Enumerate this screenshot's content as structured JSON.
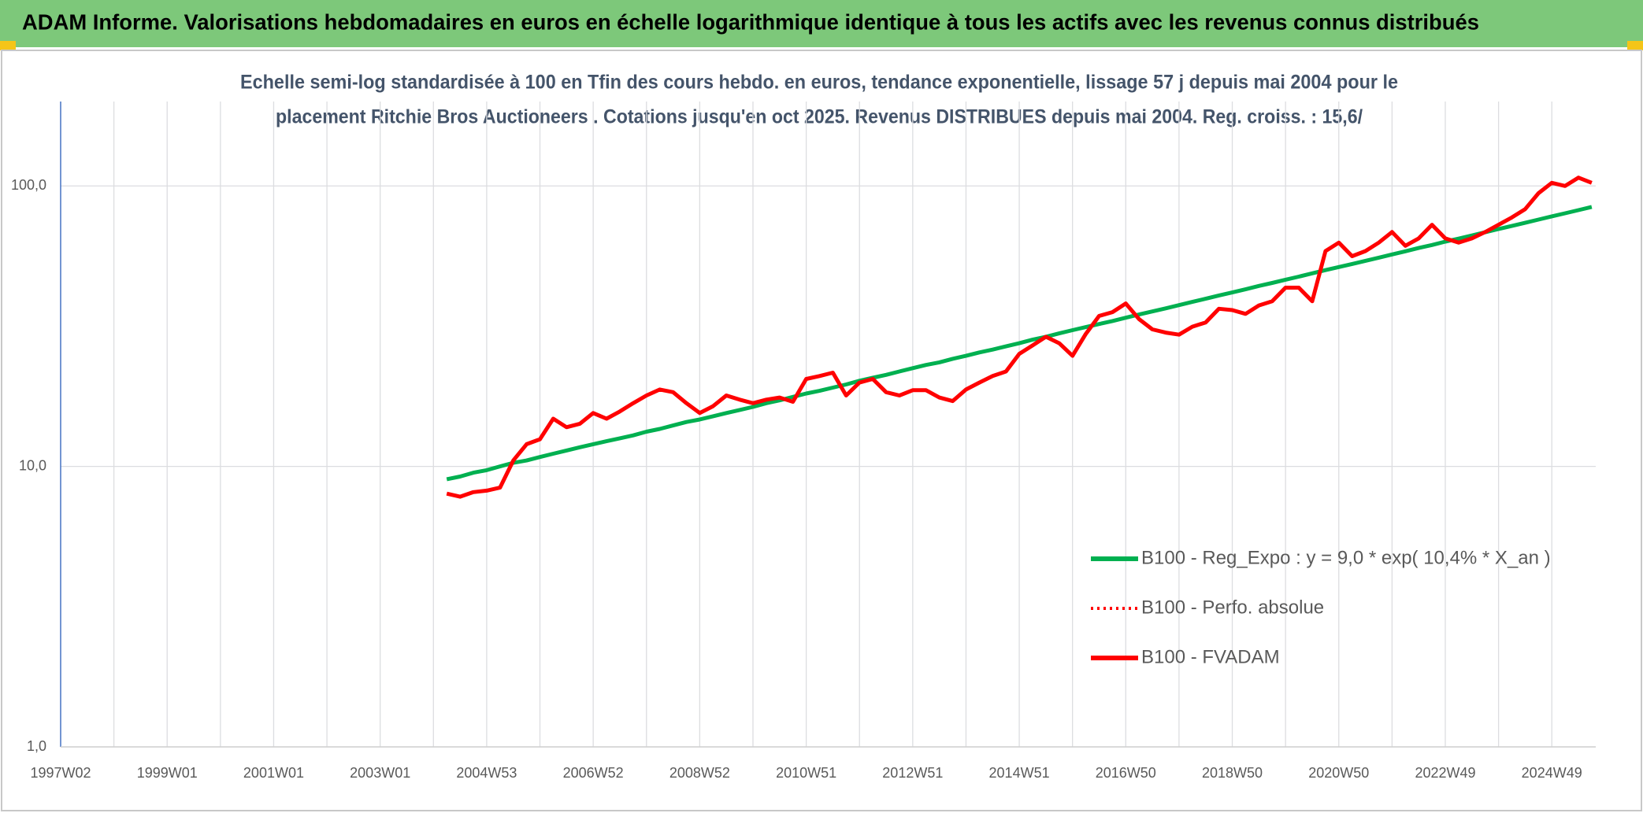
{
  "chart_data": {
    "type": "line",
    "title": "ADAM Informe. Valorisations hebdomadaires en euros en échelle logarithmique identique à tous les actifs avec les revenus connus distribués",
    "subtitle": [
      "Echelle semi-log standardisée à 100 en Tfin des cours hebdo. en euros, tendance exponentielle, lissage 57 j depuis mai 2004 pour le",
      "placement Ritchie Bros Auctioneers . Cotations jusqu'en oct 2025. Revenus DISTRIBUES depuis mai 2004. Reg. croiss. : 15,6/"
    ],
    "categories": [
      "1997W02",
      null,
      null,
      null,
      null,
      null,
      null,
      null,
      "1999W01",
      null,
      null,
      null,
      null,
      null,
      null,
      null,
      "2001W01",
      null,
      null,
      null,
      null,
      null,
      null,
      null,
      "2003W01",
      null,
      null,
      null,
      null,
      null,
      null,
      null,
      "2004W53",
      null,
      null,
      null,
      null,
      null,
      null,
      null,
      "2006W52",
      null,
      null,
      null,
      null,
      null,
      null,
      null,
      "2008W52",
      null,
      null,
      null,
      null,
      null,
      null,
      null,
      "2010W51",
      null,
      null,
      null,
      null,
      null,
      null,
      null,
      "2012W51",
      null,
      null,
      null,
      null,
      null,
      null,
      null,
      "2014W51",
      null,
      null,
      null,
      null,
      null,
      null,
      null,
      "2016W50",
      null,
      null,
      null,
      null,
      null,
      null,
      null,
      "2018W50",
      null,
      null,
      null,
      null,
      null,
      null,
      null,
      "2020W50",
      null,
      null,
      null,
      null,
      null,
      null,
      null,
      "2022W49",
      null,
      null,
      null,
      null,
      null,
      null,
      null,
      "2024W49",
      null,
      null,
      null
    ],
    "log_scale": true,
    "ylim": [
      1,
      200
    ],
    "yticks": [
      {
        "value": 1,
        "label": "1,0"
      },
      {
        "value": 10,
        "label": "10,0"
      },
      {
        "value": 100,
        "label": "100,0"
      }
    ],
    "grid": true,
    "series": [
      {
        "name": "B100 - Reg_Expo : y = 9,0 * exp( 10,4% *  X_an )",
        "color": "#00b050",
        "values": [
          null,
          null,
          null,
          null,
          null,
          null,
          null,
          null,
          null,
          null,
          null,
          null,
          null,
          null,
          null,
          null,
          null,
          null,
          null,
          null,
          null,
          null,
          null,
          null,
          null,
          null,
          null,
          null,
          null,
          9.0,
          9.2,
          9.5,
          9.7,
          10.0,
          10.3,
          10.5,
          10.8,
          11.1,
          11.4,
          11.7,
          12.0,
          12.3,
          12.6,
          12.9,
          13.3,
          13.6,
          14.0,
          14.4,
          14.7,
          15.1,
          15.5,
          15.9,
          16.3,
          16.8,
          17.2,
          17.7,
          18.2,
          18.6,
          19.1,
          19.6,
          20.2,
          20.7,
          21.2,
          21.8,
          22.4,
          23.0,
          23.5,
          24.2,
          24.8,
          25.5,
          26.1,
          26.8,
          27.5,
          28.3,
          29.0,
          29.8,
          30.6,
          31.4,
          32.2,
          33.0,
          33.9,
          34.8,
          35.7,
          36.6,
          37.6,
          38.6,
          39.6,
          40.7,
          41.7,
          42.8,
          44.0,
          45.1,
          46.3,
          47.5,
          48.8,
          50.1,
          51.4,
          52.7,
          54.1,
          55.5,
          57.0,
          58.5,
          60.1,
          61.6,
          63.3,
          64.9,
          66.6,
          68.4,
          70.2,
          72.0,
          73.9,
          75.9,
          77.9,
          79.9,
          82.0,
          84.2
        ]
      },
      {
        "name": "B100 - Perfo. absolue",
        "color": "#ff0000",
        "dash": "dotted"
      },
      {
        "name": "B100 - FVADAM",
        "color": "#ff0000",
        "values": [
          null,
          null,
          null,
          null,
          null,
          null,
          null,
          null,
          null,
          null,
          null,
          null,
          null,
          null,
          null,
          null,
          null,
          null,
          null,
          null,
          null,
          null,
          null,
          null,
          null,
          null,
          null,
          null,
          null,
          8.0,
          7.8,
          8.1,
          8.2,
          8.4,
          10.5,
          12.0,
          12.5,
          14.8,
          13.8,
          14.2,
          15.5,
          14.8,
          15.7,
          16.8,
          17.9,
          18.8,
          18.4,
          16.8,
          15.5,
          16.4,
          17.9,
          17.3,
          16.8,
          17.3,
          17.6,
          17.0,
          20.5,
          21.0,
          21.6,
          17.9,
          19.9,
          20.5,
          18.4,
          17.9,
          18.7,
          18.7,
          17.6,
          17.1,
          18.8,
          19.9,
          21.0,
          21.8,
          25.2,
          27.0,
          29.0,
          27.5,
          24.8,
          29.7,
          34.4,
          35.5,
          38.1,
          33.5,
          30.8,
          30.0,
          29.5,
          31.5,
          32.6,
          36.5,
          36.1,
          35.0,
          37.5,
          38.8,
          43.4,
          43.4,
          38.8,
          58.6,
          62.8,
          56.2,
          58.6,
          62.8,
          68.5,
          61.2,
          65.0,
          72.7,
          65.0,
          62.8,
          65.0,
          68.5,
          72.7,
          77.2,
          82.7,
          94.2,
          102.6,
          100.0,
          107.1,
          102.6
        ]
      }
    ]
  }
}
